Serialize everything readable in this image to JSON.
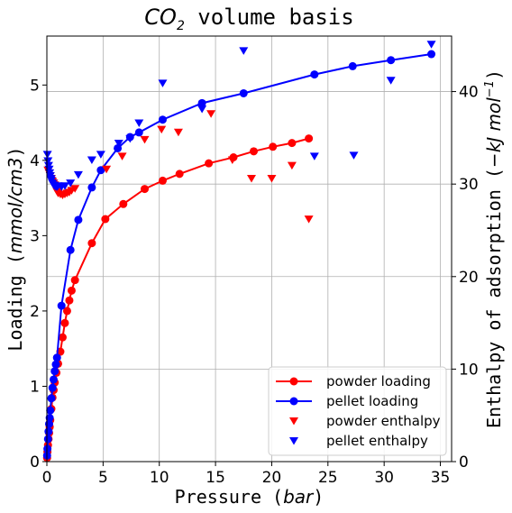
{
  "chart_data": {
    "type": "line",
    "title": "CO₂ volume basis",
    "title_parts": {
      "main": "CO",
      "sub": "2",
      "rest": " volume basis"
    },
    "xlabel": "Pressure (bar)",
    "xlabel_parts": {
      "text": "Pressure (",
      "unit": "bar",
      "close": ")"
    },
    "ylabel": "Loading (mmol/cm3)",
    "ylabel_parts": {
      "text": "Loading (",
      "unit": "mmol/cm3",
      "close": ")"
    },
    "y2label": "Enthalpy of adsorption (−kJ mol⁻¹)",
    "y2label_parts": {
      "text": "Enthalpy of adsorption (",
      "unit": "−kJ mol",
      "sup": "−1",
      "close": ")"
    },
    "xlim": [
      0,
      36
    ],
    "ylim": [
      0,
      5.65
    ],
    "y2lim": [
      0,
      46
    ],
    "xticks": [
      0,
      5,
      10,
      15,
      20,
      25,
      30,
      35
    ],
    "yticks": [
      0,
      1,
      2,
      3,
      4,
      5
    ],
    "y2ticks": [
      0,
      10,
      20,
      30,
      40
    ],
    "grid": true,
    "legend_position": "bottom-right",
    "series": [
      {
        "name": "powder loading",
        "axis": "left",
        "kind": "line-marker",
        "color": "#ff0000",
        "x": [
          0.02,
          0.05,
          0.1,
          0.15,
          0.2,
          0.25,
          0.3,
          0.4,
          0.5,
          0.6,
          0.7,
          0.85,
          1.0,
          1.2,
          1.4,
          1.6,
          1.8,
          2.0,
          2.2,
          2.5,
          4.0,
          5.2,
          6.8,
          8.7,
          10.3,
          11.8,
          14.4,
          16.6,
          18.4,
          20.1,
          21.8,
          23.3
        ],
        "y": [
          0.05,
          0.13,
          0.22,
          0.3,
          0.38,
          0.46,
          0.55,
          0.7,
          0.85,
          0.95,
          1.05,
          1.18,
          1.3,
          1.46,
          1.65,
          1.84,
          2.0,
          2.14,
          2.27,
          2.41,
          2.9,
          3.22,
          3.42,
          3.62,
          3.73,
          3.82,
          3.96,
          4.04,
          4.12,
          4.18,
          4.23,
          4.29
        ]
      },
      {
        "name": "pellet loading",
        "axis": "left",
        "kind": "line-marker",
        "color": "#0000ff",
        "x": [
          0.02,
          0.05,
          0.1,
          0.15,
          0.2,
          0.25,
          0.3,
          0.4,
          0.5,
          0.6,
          0.7,
          0.8,
          0.9,
          1.3,
          2.1,
          2.8,
          4.0,
          4.8,
          6.3,
          7.4,
          8.2,
          10.3,
          13.8,
          17.5,
          23.8,
          27.2,
          30.6,
          34.2
        ],
        "y": [
          0.08,
          0.17,
          0.3,
          0.4,
          0.5,
          0.58,
          0.68,
          0.84,
          0.98,
          1.09,
          1.2,
          1.29,
          1.38,
          2.07,
          2.81,
          3.21,
          3.64,
          3.87,
          4.16,
          4.31,
          4.37,
          4.54,
          4.76,
          4.89,
          5.14,
          5.25,
          5.33,
          5.41
        ]
      },
      {
        "name": "powder enthalpy",
        "axis": "right",
        "kind": "marker-down",
        "color": "#ff0000",
        "x": [
          0.1,
          0.2,
          0.3,
          0.4,
          0.5,
          0.6,
          0.7,
          0.8,
          0.9,
          1.0,
          1.2,
          1.4,
          1.6,
          1.8,
          2.0,
          2.2,
          2.5,
          5.3,
          6.7,
          8.7,
          10.2,
          11.7,
          14.6,
          16.5,
          18.2,
          20.0,
          21.8,
          23.3
        ],
        "y": [
          31.5,
          31.2,
          30.9,
          30.6,
          30.3,
          30.1,
          29.9,
          29.5,
          29.2,
          29.0,
          28.9,
          28.8,
          28.9,
          29.0,
          29.1,
          29.3,
          29.5,
          31.6,
          33.0,
          34.8,
          35.9,
          35.6,
          37.6,
          32.6,
          30.6,
          30.6,
          32.0,
          26.2
        ]
      },
      {
        "name": "pellet enthalpy",
        "axis": "right",
        "kind": "marker-down",
        "color": "#0000ff",
        "x": [
          0.05,
          0.1,
          0.15,
          0.2,
          0.25,
          0.3,
          0.35,
          0.4,
          0.5,
          0.6,
          0.7,
          0.8,
          0.9,
          1.0,
          1.3,
          1.6,
          2.1,
          2.8,
          4.0,
          4.8,
          6.4,
          7.4,
          8.2,
          10.3,
          13.8,
          17.5,
          23.8,
          27.3,
          30.6,
          34.2
        ],
        "y": [
          33.2,
          32.5,
          32.0,
          31.6,
          31.2,
          30.9,
          30.6,
          30.4,
          30.1,
          29.9,
          29.8,
          29.7,
          29.7,
          29.8,
          29.7,
          29.8,
          30.1,
          31.0,
          32.6,
          33.2,
          34.4,
          34.9,
          36.6,
          40.9,
          38.1,
          44.4,
          33.0,
          33.1,
          41.2,
          45.1
        ]
      }
    ]
  }
}
